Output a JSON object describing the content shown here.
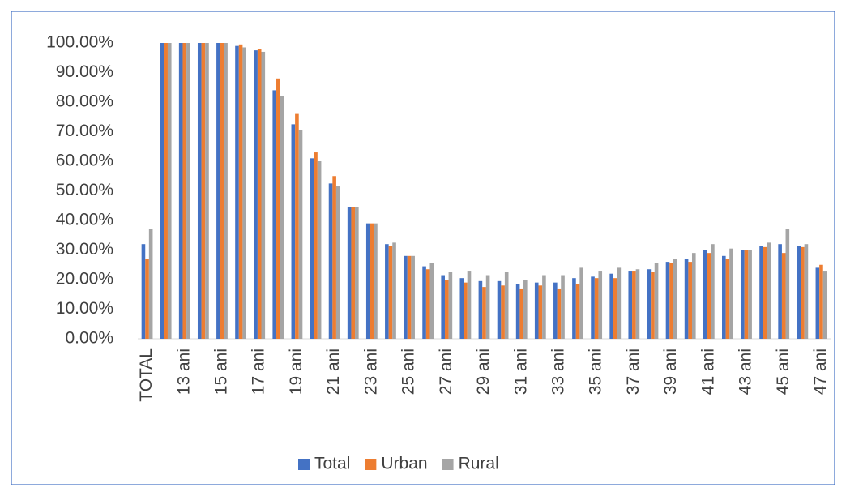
{
  "chart_data": {
    "type": "bar",
    "categories": [
      "TOTAL",
      null,
      "13 ani",
      null,
      "15 ani",
      null,
      "17 ani",
      null,
      "19 ani",
      null,
      "21 ani",
      null,
      "23 ani",
      null,
      "25 ani",
      null,
      "27 ani",
      null,
      "29 ani",
      null,
      "31 ani",
      null,
      "33 ani",
      null,
      "35 ani",
      null,
      "37 ani",
      null,
      "39 ani",
      null,
      "41 ani",
      null,
      "43 ani",
      null,
      "45 ani",
      null,
      "47 ani"
    ],
    "series": [
      {
        "name": "Total",
        "color": "#4472c4",
        "values": [
          32,
          100,
          100,
          100,
          100,
          99,
          97.5,
          84,
          72.5,
          61,
          52.5,
          44.5,
          39,
          32,
          28,
          24.5,
          21.5,
          20.5,
          19.5,
          19.5,
          18.5,
          19,
          19,
          20.5,
          21,
          22,
          23,
          23.5,
          26,
          27,
          30,
          28,
          30,
          31.5,
          32,
          31.5,
          24
        ]
      },
      {
        "name": "Urban",
        "color": "#ed7d31",
        "values": [
          27,
          100,
          100,
          100,
          100,
          99.5,
          98,
          88,
          76,
          63,
          55,
          44.5,
          39,
          31.5,
          28,
          23.5,
          20,
          19,
          17.5,
          18,
          17,
          18,
          17,
          18.5,
          20.5,
          20.5,
          23,
          22.5,
          25.5,
          26,
          29,
          27,
          30,
          31,
          29,
          31,
          25
        ]
      },
      {
        "name": "Rural",
        "color": "#a5a5a5",
        "values": [
          37,
          100,
          100,
          100,
          100,
          98.5,
          97,
          82,
          70.5,
          60,
          51.5,
          44.5,
          39,
          32.5,
          28,
          25.5,
          22.5,
          23,
          21.5,
          22.5,
          20,
          21.5,
          21.5,
          24,
          23,
          24,
          23.5,
          25.5,
          27,
          29,
          32,
          30.5,
          30,
          32.5,
          37,
          32,
          23
        ]
      }
    ],
    "ylim": [
      0,
      100
    ],
    "yticks": [
      {
        "value": 0,
        "label": "0.00%"
      },
      {
        "value": 10,
        "label": "10.00%"
      },
      {
        "value": 20,
        "label": "20.00%"
      },
      {
        "value": 30,
        "label": "30.00%"
      },
      {
        "value": 40,
        "label": "40.00%"
      },
      {
        "value": 50,
        "label": "50.00%"
      },
      {
        "value": 60,
        "label": "60.00%"
      },
      {
        "value": 70,
        "label": "70.00%"
      },
      {
        "value": 80,
        "label": "80.00%"
      },
      {
        "value": 90,
        "label": "90.00%"
      },
      {
        "value": 100,
        "label": "100.00%"
      }
    ],
    "grid": false,
    "legend": "bottom"
  }
}
